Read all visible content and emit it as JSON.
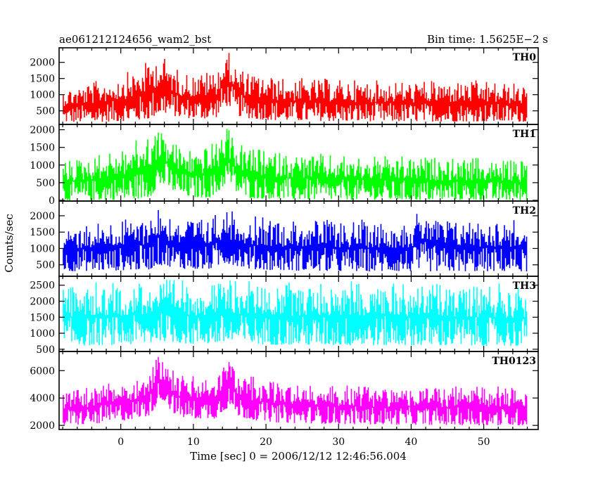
{
  "header": {
    "obs_id": "ae061212124656_wam2_bst",
    "bin_time": "Bin time: 1.5625E−2 s"
  },
  "axes": {
    "ylabel": "Counts/sec",
    "xlabel": "Time [sec] 0 = 2006/12/12 12:46:56.004",
    "xlim": [
      -8.5,
      57.5
    ],
    "xticks": [
      0,
      10,
      20,
      30,
      40,
      50
    ]
  },
  "chart_data": [
    {
      "type": "line",
      "name": "TH0",
      "color": "#ff0000",
      "ylim": [
        80,
        2450
      ],
      "yticks": [
        500,
        1000,
        1500,
        2000
      ],
      "x_range": [
        -8,
        56
      ],
      "envelope": {
        "x": [
          -8,
          -4,
          0,
          2,
          4,
          5,
          6,
          8,
          10,
          13,
          14.5,
          15,
          16,
          18,
          22,
          30,
          40,
          50,
          56
        ],
        "low": [
          150,
          150,
          180,
          200,
          250,
          380,
          420,
          300,
          260,
          260,
          650,
          650,
          350,
          250,
          200,
          180,
          170,
          170,
          160
        ],
        "high": [
          1250,
          1400,
          1650,
          1800,
          2100,
          2300,
          2200,
          1800,
          1700,
          1800,
          2350,
          2300,
          1900,
          1700,
          1550,
          1500,
          1450,
          1450,
          1350
        ]
      }
    },
    {
      "type": "line",
      "name": "TH1",
      "color": "#00ff00",
      "ylim": [
        -20,
        2150
      ],
      "yticks": [
        0,
        500,
        1000,
        1500,
        2000
      ],
      "x_range": [
        -8,
        56
      ],
      "envelope": {
        "x": [
          -8,
          -4,
          0,
          2,
          4,
          5,
          6,
          8,
          10,
          13,
          14.5,
          15,
          16,
          18,
          22,
          30,
          40,
          50,
          56
        ],
        "low": [
          0,
          0,
          20,
          40,
          80,
          380,
          420,
          150,
          80,
          80,
          500,
          500,
          200,
          60,
          30,
          20,
          10,
          10,
          0
        ],
        "high": [
          1150,
          1300,
          1500,
          1700,
          1950,
          2100,
          2000,
          1600,
          1500,
          1650,
          2050,
          2000,
          1700,
          1500,
          1400,
          1300,
          1250,
          1200,
          1150
        ]
      }
    },
    {
      "type": "line",
      "name": "TH2",
      "color": "#0000ff",
      "ylim": [
        150,
        2450
      ],
      "yticks": [
        500,
        1000,
        1500,
        2000
      ],
      "x_range": [
        -8,
        56
      ],
      "envelope": {
        "x": [
          -8,
          -4,
          0,
          4,
          5,
          6,
          8,
          12,
          14.5,
          15,
          18,
          22,
          30,
          40,
          42,
          44,
          50,
          56
        ],
        "low": [
          300,
          320,
          330,
          360,
          500,
          480,
          380,
          350,
          550,
          520,
          360,
          330,
          300,
          300,
          300,
          300,
          300,
          300
        ],
        "high": [
          1750,
          1850,
          1900,
          2100,
          2400,
          2200,
          2000,
          1950,
          2300,
          2200,
          2000,
          1950,
          1900,
          1900,
          2350,
          1950,
          1950,
          1900
        ]
      }
    },
    {
      "type": "line",
      "name": "TH3",
      "color": "#00ffff",
      "ylim": [
        430,
        2780
      ],
      "yticks": [
        500,
        1000,
        1500,
        2000,
        2500
      ],
      "x_range": [
        -8,
        56
      ],
      "envelope": {
        "x": [
          -8,
          -4,
          0,
          4,
          5,
          6,
          10,
          15,
          20,
          30,
          40,
          50,
          56
        ],
        "low": [
          600,
          620,
          640,
          660,
          800,
          750,
          650,
          700,
          640,
          620,
          620,
          600,
          600
        ],
        "high": [
          2550,
          2600,
          2650,
          2700,
          2750,
          2700,
          2650,
          2700,
          2650,
          2650,
          2650,
          2600,
          2550
        ]
      }
    },
    {
      "type": "line",
      "name": "TH0123",
      "color": "#ff00ff",
      "ylim": [
        1700,
        7400
      ],
      "yticks": [
        2000,
        4000,
        6000
      ],
      "x_range": [
        -8,
        56
      ],
      "envelope": {
        "x": [
          -8,
          -4,
          0,
          2,
          4,
          5,
          6,
          7,
          8,
          10,
          13,
          14.5,
          15,
          16,
          18,
          22,
          30,
          40,
          50,
          56
        ],
        "low": [
          2000,
          2100,
          2300,
          2500,
          2700,
          3600,
          3800,
          3000,
          2600,
          2500,
          2500,
          3200,
          3300,
          2700,
          2400,
          2200,
          2100,
          2050,
          2000,
          2000
        ],
        "high": [
          4600,
          4900,
          5400,
          5600,
          6200,
          7200,
          7200,
          6300,
          5900,
          5600,
          5700,
          7200,
          7000,
          6100,
          5600,
          5200,
          5000,
          4900,
          4900,
          4800
        ]
      }
    }
  ]
}
